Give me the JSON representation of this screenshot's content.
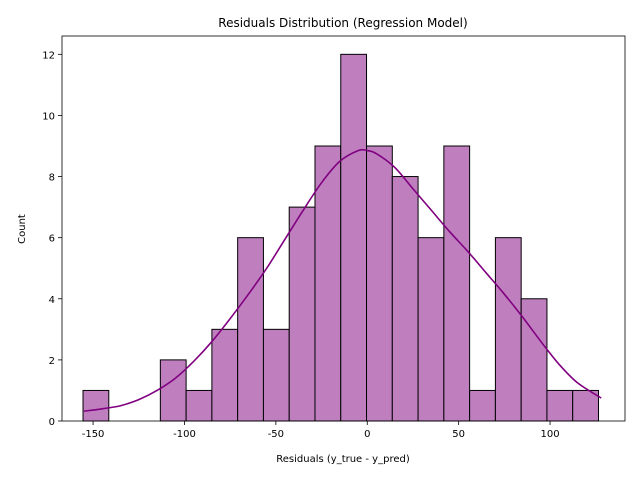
{
  "chart_data": {
    "type": "bar",
    "subtype": "histogram",
    "title": "Residuals Distribution (Regression Model)",
    "xlabel": "Residuals (y_true - y_pred)",
    "ylabel": "Count",
    "xlim": [
      -167,
      141
    ],
    "ylim": [
      0,
      12.6
    ],
    "xticks": [
      -150,
      -100,
      -50,
      0,
      50,
      100
    ],
    "yticks": [
      0,
      2,
      4,
      6,
      8,
      10,
      12
    ],
    "bin_start": -155.5,
    "bin_width": 14.1,
    "counts": [
      1,
      0,
      0,
      2,
      1,
      3,
      6,
      3,
      7,
      9,
      12,
      9,
      8,
      6,
      9,
      1,
      6,
      4,
      1,
      1
    ],
    "kde": {
      "x": [
        -155,
        -145,
        -135,
        -125,
        -115,
        -105,
        -95,
        -85,
        -75,
        -65,
        -55,
        -45,
        -35,
        -25,
        -15,
        -5,
        0,
        5,
        15,
        25,
        35,
        45,
        55,
        65,
        75,
        85,
        95,
        105,
        115,
        128
      ],
      "y": [
        0.32,
        0.4,
        0.5,
        0.7,
        1.0,
        1.4,
        1.95,
        2.6,
        3.35,
        4.15,
        5.0,
        5.95,
        6.9,
        7.8,
        8.5,
        8.85,
        8.85,
        8.75,
        8.3,
        7.6,
        6.9,
        6.2,
        5.55,
        4.85,
        4.15,
        3.4,
        2.6,
        1.85,
        1.25,
        0.75
      ]
    },
    "bar_color": "#bf7fbf",
    "bar_edge_color": "#000000",
    "kde_color": "#800080",
    "grid": false,
    "legend": false
  }
}
